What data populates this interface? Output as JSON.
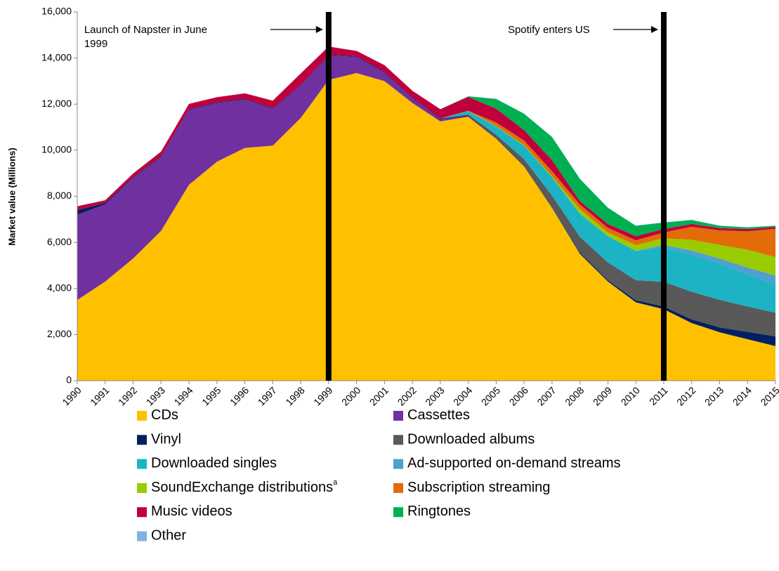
{
  "chart_data": {
    "type": "stacked_area",
    "y_label": "Market value (Millions)",
    "x": [
      1990,
      1991,
      1992,
      1993,
      1994,
      1995,
      1996,
      1997,
      1998,
      1999,
      2000,
      2001,
      2002,
      2003,
      2004,
      2005,
      2006,
      2007,
      2008,
      2009,
      2010,
      2011,
      2012,
      2013,
      2014,
      2015
    ],
    "xlim": [
      1990,
      2015
    ],
    "ylim": [
      0,
      16000
    ],
    "yticks": [
      0,
      {
        "value": 2000,
        "label": "2,000"
      },
      {
        "value": 4000,
        "label": "4,000"
      },
      {
        "value": 6000,
        "label": "6,000"
      },
      {
        "value": 8000,
        "label": "8,000"
      },
      {
        "value": 10000,
        "label": "10,000"
      },
      {
        "value": 12000,
        "label": "12,000"
      },
      {
        "value": 14000,
        "label": "14,000"
      },
      {
        "value": 16000,
        "label": "16,000"
      }
    ],
    "series": [
      {
        "name": "CDs",
        "color": "#ffc000",
        "values": [
          3500,
          4300,
          5300,
          6500,
          8500,
          9500,
          10100,
          10200,
          11400,
          13050,
          13350,
          13000,
          12050,
          11250,
          11450,
          10500,
          9300,
          7500,
          5500,
          4300,
          3400,
          3100,
          2500,
          2100,
          1800,
          1500
        ]
      },
      {
        "name": "Cassettes",
        "color": "#7030a0",
        "values": [
          3700,
          3350,
          3500,
          3200,
          3250,
          2550,
          2100,
          1600,
          1400,
          1060,
          700,
          360,
          200,
          100,
          25,
          13,
          0,
          0,
          0,
          0,
          0,
          0,
          0,
          0,
          0,
          0
        ]
      },
      {
        "name": "Vinyl",
        "color": "#002060",
        "values": [
          200,
          60,
          30,
          30,
          30,
          30,
          30,
          30,
          30,
          30,
          30,
          30,
          30,
          30,
          30,
          30,
          30,
          30,
          60,
          60,
          90,
          120,
          160,
          210,
          320,
          420
        ]
      },
      {
        "name": "Downloaded albums",
        "color": "#595959",
        "values": [
          0,
          0,
          0,
          0,
          0,
          0,
          0,
          0,
          0,
          0,
          0,
          0,
          0,
          0,
          50,
          130,
          280,
          500,
          680,
          770,
          870,
          1070,
          1200,
          1200,
          1100,
          1030
        ]
      },
      {
        "name": "Downloaded singles",
        "color": "#1cb4c4",
        "values": [
          0,
          0,
          0,
          0,
          0,
          0,
          0,
          0,
          0,
          0,
          0,
          0,
          0,
          0,
          140,
          360,
          580,
          800,
          1000,
          1140,
          1270,
          1500,
          1620,
          1570,
          1390,
          1230
        ]
      },
      {
        "name": "Ad-supported on-demand streams",
        "color": "#4f9fd0",
        "values": [
          0,
          0,
          0,
          0,
          0,
          0,
          0,
          0,
          0,
          0,
          0,
          0,
          0,
          0,
          0,
          0,
          0,
          0,
          0,
          0,
          0,
          100,
          170,
          220,
          300,
          380
        ]
      },
      {
        "name": "SoundExchange distributions",
        "name_sup": "a",
        "color": "#99cc00",
        "values": [
          0,
          0,
          0,
          0,
          0,
          0,
          0,
          0,
          0,
          0,
          0,
          0,
          0,
          0,
          10,
          20,
          30,
          40,
          200,
          160,
          250,
          290,
          460,
          590,
          770,
          800
        ]
      },
      {
        "name": "Subscription streaming",
        "color": "#e36c09",
        "values": [
          0,
          0,
          0,
          0,
          0,
          0,
          0,
          0,
          0,
          0,
          0,
          0,
          0,
          0,
          0,
          150,
          200,
          220,
          200,
          200,
          210,
          250,
          570,
          630,
          800,
          1230
        ]
      },
      {
        "name": "Music videos",
        "color": "#c0003c",
        "values": [
          170,
          120,
          160,
          210,
          230,
          220,
          240,
          320,
          500,
          360,
          230,
          300,
          300,
          400,
          610,
          600,
          450,
          480,
          150,
          170,
          180,
          150,
          120,
          100,
          100,
          80
        ]
      },
      {
        "name": "Ringtones",
        "color": "#00b050",
        "values": [
          0,
          0,
          0,
          0,
          0,
          0,
          0,
          0,
          0,
          0,
          0,
          0,
          0,
          0,
          20,
          420,
          710,
          1000,
          960,
          700,
          450,
          280,
          170,
          100,
          70,
          50
        ]
      },
      {
        "name": "Other",
        "color": "#7fb2e0",
        "values": [
          0,
          0,
          0,
          0,
          0,
          0,
          0,
          0,
          0,
          0,
          0,
          0,
          0,
          0,
          10,
          10,
          10,
          10,
          10,
          10,
          10,
          10,
          10,
          10,
          10,
          10
        ]
      }
    ],
    "annotations": [
      {
        "x": 1999,
        "text": [
          "Launch of Napster in June",
          "1999"
        ]
      },
      {
        "x": 2011,
        "text": [
          "Spotify enters US"
        ]
      }
    ]
  }
}
